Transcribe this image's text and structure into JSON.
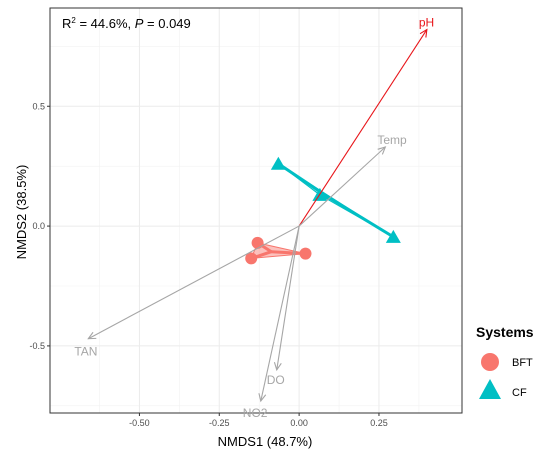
{
  "chart_data": {
    "type": "scatter",
    "xlabel": "NMDS1 (48.7%)",
    "ylabel": "NMDS2 (38.5%)",
    "xlim": [
      -0.78,
      0.51
    ],
    "ylim": [
      -0.78,
      0.91
    ],
    "x_ticks": [
      -0.5,
      -0.25,
      0.0,
      0.25
    ],
    "x_tick_labels": [
      "-0.50",
      "-0.25",
      "0.00",
      "0.25"
    ],
    "y_ticks": [
      -0.5,
      0.0,
      0.5
    ],
    "y_tick_labels": [
      "-0.5",
      "0.0",
      "0.5"
    ],
    "grid": true,
    "annotation": {
      "r2_text": "R",
      "r2_sup": "2",
      "r2_rest": " = 44.6%, ",
      "p_text": "P",
      "p_rest": " = 0.049"
    },
    "series": [
      {
        "name": "BFT",
        "marker": "circle",
        "color": "#F8766D",
        "points": [
          {
            "x": -0.13,
            "y": -0.07
          },
          {
            "x": -0.15,
            "y": -0.135
          },
          {
            "x": 0.02,
            "y": -0.115
          }
        ],
        "centroid": {
          "x": -0.087,
          "y": -0.107
        }
      },
      {
        "name": "CF",
        "marker": "triangle",
        "color": "#00BFC4",
        "points": [
          {
            "x": -0.065,
            "y": 0.26
          },
          {
            "x": 0.295,
            "y": -0.045
          },
          {
            "x": 0.065,
            "y": 0.13
          }
        ],
        "centroid": {
          "x": 0.098,
          "y": 0.115
        }
      }
    ],
    "vectors": [
      {
        "name": "pH",
        "x": 0.4,
        "y": 0.82,
        "color": "#E8161B"
      },
      {
        "name": "Temp",
        "x": 0.27,
        "y": 0.33,
        "color": "#A6A6A6"
      },
      {
        "name": "TAN",
        "x": -0.66,
        "y": -0.47,
        "color": "#A6A6A6"
      },
      {
        "name": "DO",
        "x": -0.07,
        "y": -0.6,
        "color": "#A6A6A6"
      },
      {
        "name": "NO2",
        "x": -0.12,
        "y": -0.73,
        "color": "#A6A6A6"
      }
    ],
    "legend": {
      "title": "Systems",
      "placement": "right",
      "items": [
        {
          "label": "BFT",
          "marker": "circle",
          "color": "#F8766D"
        },
        {
          "label": "CF",
          "marker": "triangle",
          "color": "#00BFC4"
        }
      ]
    }
  }
}
